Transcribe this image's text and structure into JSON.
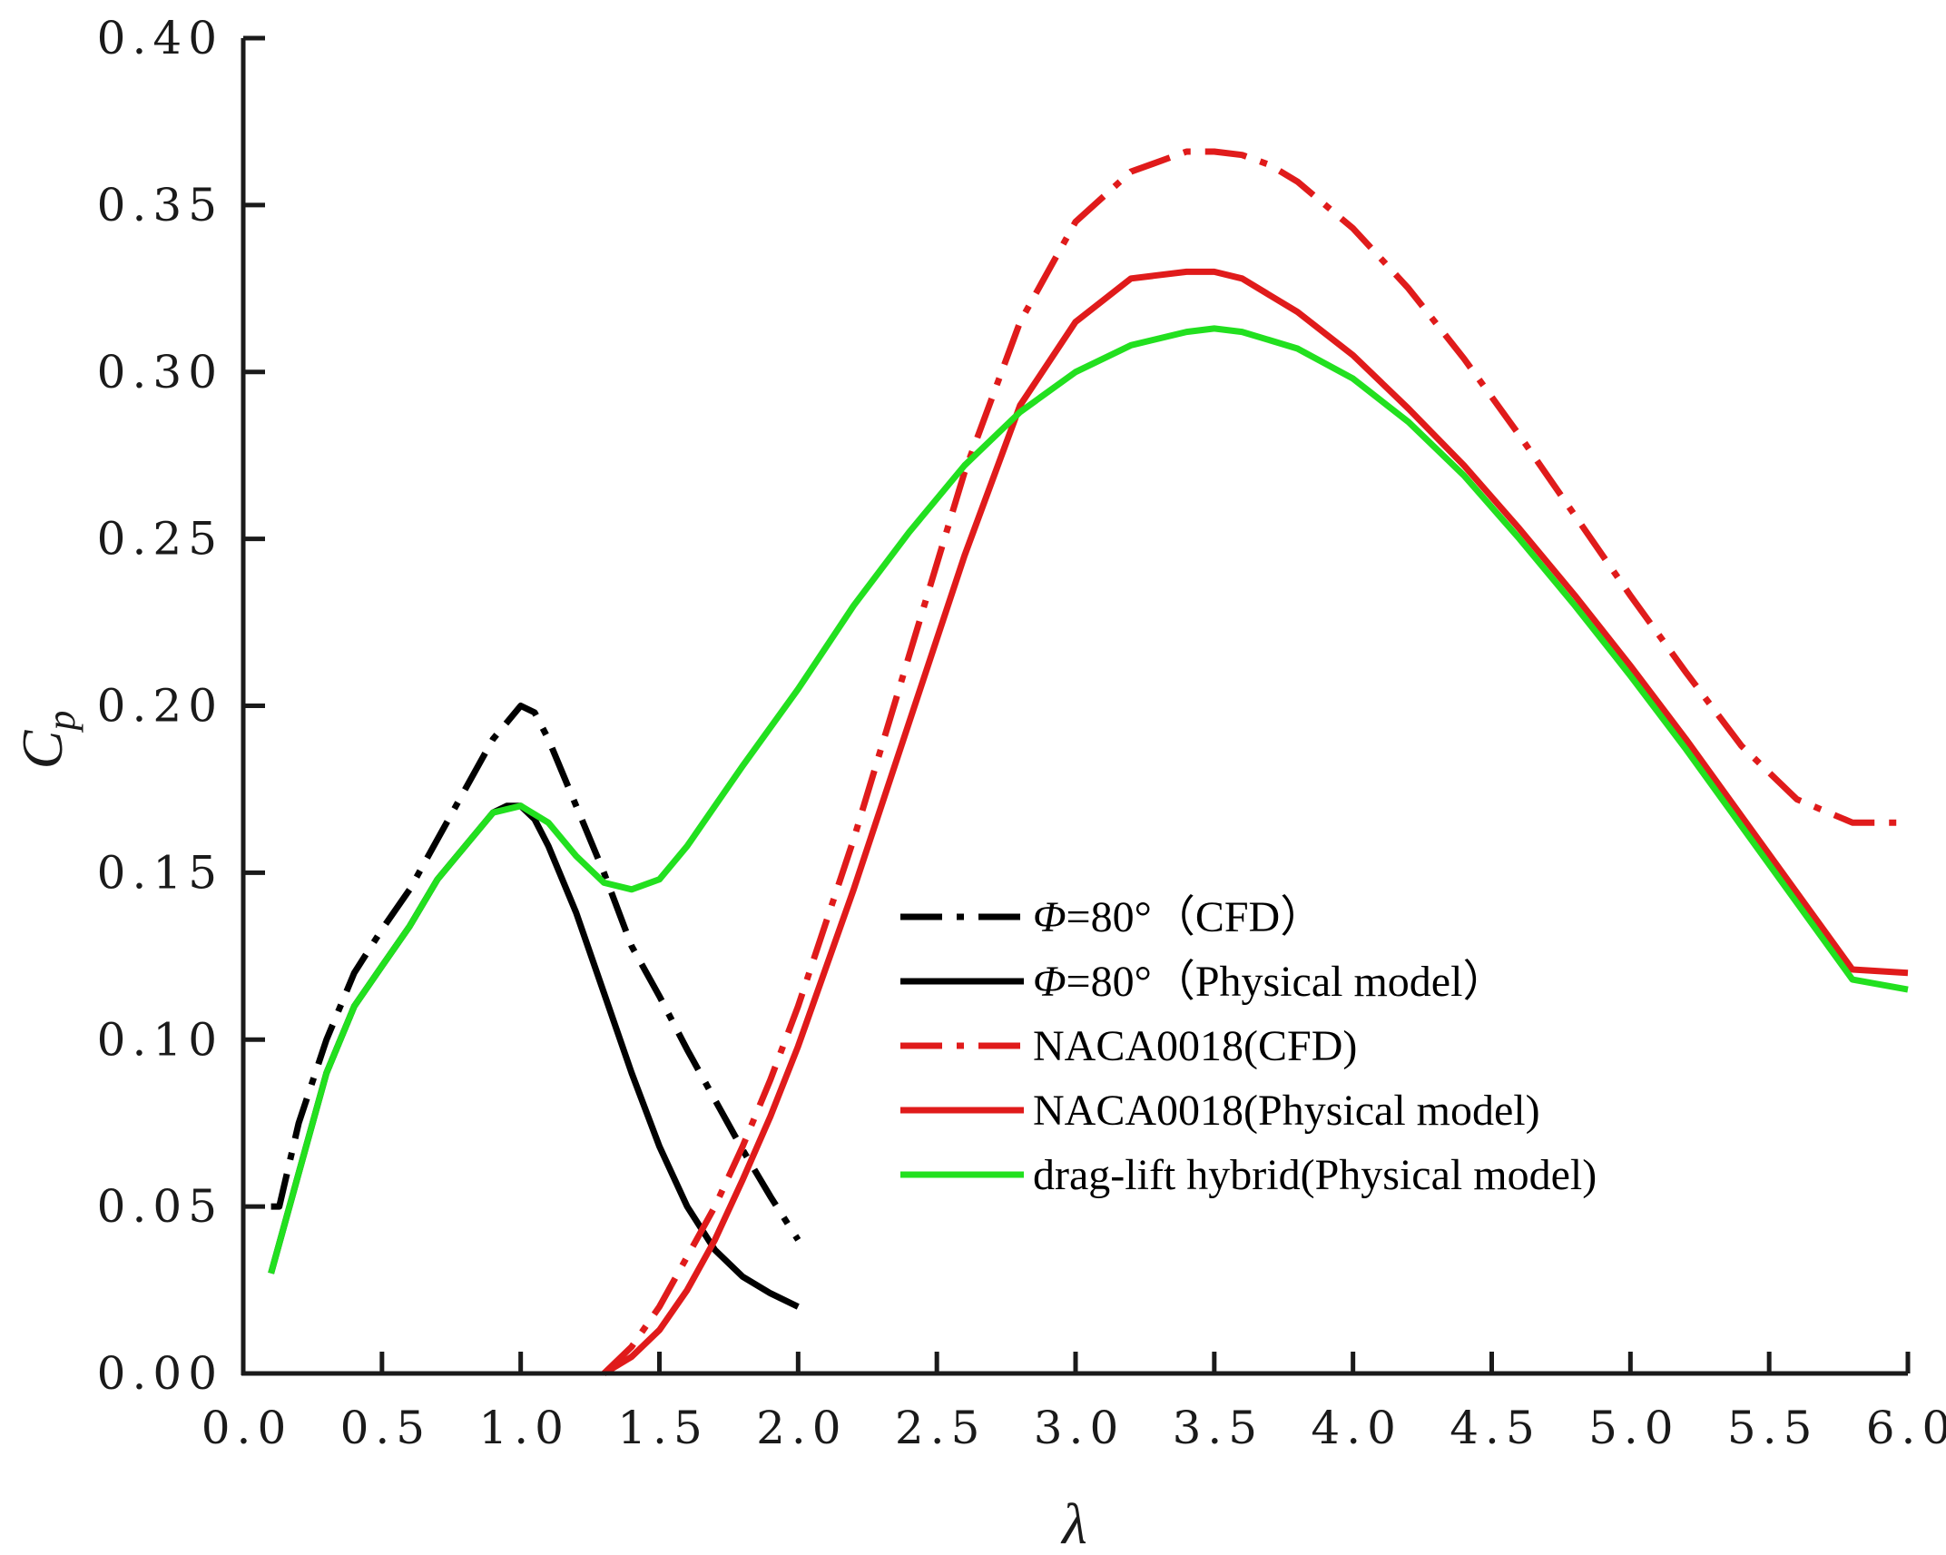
{
  "chart_data": {
    "type": "line",
    "title": "",
    "xlabel": "λ",
    "ylabel_main": "C",
    "ylabel_sub": "p",
    "xlim": [
      0.0,
      6.0
    ],
    "ylim": [
      0.0,
      0.4
    ],
    "grid": false,
    "legend_position": "center-right",
    "x_ticks": [
      0.0,
      0.5,
      1.0,
      1.5,
      2.0,
      2.5,
      3.0,
      3.5,
      4.0,
      4.5,
      5.0,
      5.5,
      6.0
    ],
    "x_tick_labels": [
      "0.0",
      "0.5",
      "1.0",
      "1.5",
      "2.0",
      "2.5",
      "3.0",
      "3.5",
      "4.0",
      "4.5",
      "5.0",
      "5.5",
      "6.0"
    ],
    "y_ticks": [
      0.0,
      0.05,
      0.1,
      0.15,
      0.2,
      0.25,
      0.3,
      0.35,
      0.4
    ],
    "y_tick_labels": [
      "0.00",
      "0.05",
      "0.10",
      "0.15",
      "0.20",
      "0.25",
      "0.30",
      "0.35",
      "0.40"
    ],
    "series": [
      {
        "id": "phi80-cfd",
        "legend_symbol": "Φ",
        "legend_rest": "=80°（CFD）",
        "color": "#000000",
        "dash": "dashdot",
        "x": [
          0.1,
          0.13,
          0.2,
          0.3,
          0.4,
          0.5,
          0.6,
          0.7,
          0.8,
          0.9,
          1.0,
          1.05,
          1.1,
          1.2,
          1.3,
          1.4,
          1.5,
          1.6,
          1.7,
          1.8,
          1.9,
          2.0
        ],
        "y": [
          0.05,
          0.05,
          0.075,
          0.1,
          0.12,
          0.133,
          0.145,
          0.16,
          0.175,
          0.19,
          0.2,
          0.198,
          0.19,
          0.17,
          0.15,
          0.128,
          0.113,
          0.097,
          0.082,
          0.067,
          0.053,
          0.04
        ]
      },
      {
        "id": "phi80-physical",
        "legend_symbol": "Φ",
        "legend_rest": "=80°（Physical model）",
        "color": "#000000",
        "dash": "solid",
        "x": [
          0.1,
          0.2,
          0.3,
          0.4,
          0.5,
          0.6,
          0.7,
          0.8,
          0.9,
          0.95,
          1.0,
          1.05,
          1.1,
          1.2,
          1.3,
          1.4,
          1.5,
          1.6,
          1.7,
          1.8,
          1.9,
          2.0
        ],
        "y": [
          0.03,
          0.06,
          0.09,
          0.11,
          0.122,
          0.134,
          0.148,
          0.158,
          0.168,
          0.17,
          0.17,
          0.166,
          0.158,
          0.138,
          0.114,
          0.09,
          0.068,
          0.05,
          0.037,
          0.029,
          0.024,
          0.02
        ]
      },
      {
        "id": "naca-cfd",
        "legend_symbol": "",
        "legend_rest": "NACA0018(CFD)",
        "color": "#e01b1b",
        "dash": "dashdot",
        "x": [
          1.3,
          1.4,
          1.5,
          1.6,
          1.7,
          1.8,
          1.9,
          2.0,
          2.2,
          2.4,
          2.6,
          2.8,
          3.0,
          3.2,
          3.4,
          3.5,
          3.6,
          3.7,
          3.8,
          4.0,
          4.2,
          4.4,
          4.6,
          4.8,
          5.0,
          5.2,
          5.4,
          5.6,
          5.8,
          6.0
        ],
        "y": [
          0.0,
          0.008,
          0.02,
          0.035,
          0.05,
          0.068,
          0.088,
          0.11,
          0.16,
          0.215,
          0.27,
          0.315,
          0.345,
          0.36,
          0.366,
          0.366,
          0.365,
          0.362,
          0.357,
          0.343,
          0.325,
          0.304,
          0.281,
          0.257,
          0.233,
          0.21,
          0.188,
          0.172,
          0.165,
          0.165
        ]
      },
      {
        "id": "naca-physical",
        "legend_symbol": "",
        "legend_rest": "NACA0018(Physical model)",
        "color": "#e01b1b",
        "dash": "solid",
        "x": [
          1.3,
          1.4,
          1.5,
          1.6,
          1.7,
          1.8,
          1.9,
          2.0,
          2.2,
          2.4,
          2.6,
          2.8,
          3.0,
          3.2,
          3.4,
          3.5,
          3.6,
          3.8,
          4.0,
          4.2,
          4.4,
          4.6,
          4.8,
          5.0,
          5.2,
          5.4,
          5.6,
          5.8,
          6.0
        ],
        "y": [
          0.0,
          0.005,
          0.013,
          0.025,
          0.04,
          0.058,
          0.077,
          0.098,
          0.145,
          0.195,
          0.245,
          0.29,
          0.315,
          0.328,
          0.33,
          0.33,
          0.328,
          0.318,
          0.305,
          0.289,
          0.272,
          0.253,
          0.233,
          0.212,
          0.19,
          0.167,
          0.144,
          0.121,
          0.12
        ]
      },
      {
        "id": "hybrid-physical",
        "legend_symbol": "",
        "legend_rest": "drag-lift hybrid(Physical model)",
        "color": "#22e01f",
        "dash": "solid",
        "x": [
          0.1,
          0.2,
          0.3,
          0.4,
          0.5,
          0.6,
          0.7,
          0.8,
          0.9,
          1.0,
          1.1,
          1.2,
          1.3,
          1.4,
          1.5,
          1.6,
          1.8,
          2.0,
          2.2,
          2.4,
          2.6,
          2.8,
          3.0,
          3.2,
          3.4,
          3.5,
          3.6,
          3.8,
          4.0,
          4.2,
          4.4,
          4.6,
          4.8,
          5.0,
          5.2,
          5.4,
          5.6,
          5.8,
          6.0
        ],
        "y": [
          0.03,
          0.06,
          0.09,
          0.11,
          0.122,
          0.134,
          0.148,
          0.158,
          0.168,
          0.17,
          0.165,
          0.155,
          0.147,
          0.145,
          0.148,
          0.158,
          0.182,
          0.205,
          0.23,
          0.252,
          0.272,
          0.288,
          0.3,
          0.308,
          0.312,
          0.313,
          0.312,
          0.307,
          0.298,
          0.285,
          0.269,
          0.25,
          0.23,
          0.209,
          0.187,
          0.164,
          0.141,
          0.118,
          0.115
        ]
      }
    ]
  }
}
